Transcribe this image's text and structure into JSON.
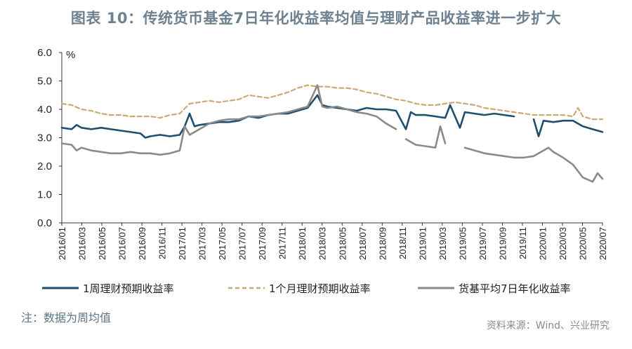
{
  "title": "图表 10：传统货币基金7日年化收益率均值与理财产品收益率进一步扩大",
  "note": "注：数据为周均值",
  "source": "资料来源：Wind、兴业研究",
  "chart_data": {
    "type": "line",
    "ylabel": "%",
    "ylim": [
      0,
      6
    ],
    "yticks": [
      "0.0",
      "1.0",
      "2.0",
      "3.0",
      "4.0",
      "5.0",
      "6.0"
    ],
    "xticks": [
      "2016/01",
      "2016/03",
      "2016/05",
      "2016/07",
      "2016/09",
      "2016/11",
      "2017/01",
      "2017/03",
      "2017/05",
      "2017/07",
      "2017/09",
      "2017/11",
      "2018/01",
      "2018/03",
      "2018/05",
      "2018/07",
      "2018/09",
      "2018/11",
      "2019/01",
      "2019/03",
      "2019/05",
      "2019/07",
      "2019/09",
      "2019/11",
      "2020/01",
      "2020/03",
      "2020/05",
      "2020/07"
    ],
    "xrange": [
      0,
      55
    ],
    "legend_position": "bottom",
    "colors": {
      "week": "#1f4e6e",
      "month": "#c9aa74",
      "mmf": "#8a8a8a"
    },
    "series": [
      {
        "name": "1周理财预期收益率",
        "style": "solid",
        "points": [
          [
            0,
            3.35
          ],
          [
            1,
            3.3
          ],
          [
            1.5,
            3.45
          ],
          [
            2,
            3.35
          ],
          [
            3,
            3.3
          ],
          [
            4,
            3.35
          ],
          [
            5,
            3.3
          ],
          [
            6,
            3.25
          ],
          [
            7,
            3.2
          ],
          [
            8,
            3.15
          ],
          [
            8.5,
            3.0
          ],
          [
            9,
            3.05
          ],
          [
            10,
            3.1
          ],
          [
            11,
            3.05
          ],
          [
            12,
            3.1
          ],
          [
            12.5,
            3.4
          ],
          [
            13,
            3.85
          ],
          [
            13.5,
            3.4
          ],
          [
            14,
            3.45
          ],
          [
            15,
            3.5
          ],
          [
            16,
            3.55
          ],
          [
            17,
            3.55
          ],
          [
            18,
            3.6
          ],
          [
            19,
            3.75
          ],
          [
            20,
            3.7
          ],
          [
            21,
            3.8
          ],
          [
            22,
            3.85
          ],
          [
            23,
            3.85
          ],
          [
            24,
            3.95
          ],
          [
            25,
            4.05
          ],
          [
            26,
            4.5
          ],
          [
            26.5,
            4.15
          ],
          [
            27,
            4.1
          ],
          [
            28,
            4.05
          ],
          [
            29,
            4.0
          ],
          [
            30,
            3.95
          ],
          [
            31,
            4.05
          ],
          [
            32,
            4.0
          ],
          [
            33,
            4.0
          ],
          [
            34,
            3.95
          ],
          [
            35,
            3.3
          ],
          [
            35.5,
            3.9
          ],
          [
            36,
            3.8
          ],
          [
            37,
            3.8
          ],
          [
            38,
            3.75
          ],
          [
            39,
            3.7
          ],
          [
            39.5,
            4.15
          ],
          [
            40,
            3.75
          ],
          [
            40.5,
            3.35
          ],
          [
            41,
            3.9
          ],
          [
            42,
            3.85
          ],
          [
            43,
            3.8
          ],
          [
            44,
            3.85
          ],
          [
            45,
            3.8
          ],
          [
            46,
            3.75
          ],
          [
            47,
            3.75
          ],
          [
            48,
            3.65
          ],
          [
            48.5,
            3.05
          ],
          [
            49,
            3.6
          ],
          [
            50,
            3.55
          ],
          [
            51,
            3.6
          ],
          [
            52,
            3.6
          ],
          [
            53,
            3.4
          ],
          [
            54,
            3.3
          ],
          [
            55,
            3.2
          ]
        ],
        "gaps_after": [
          46.5,
          47.2
        ]
      },
      {
        "name": "1个月理财预期收益率",
        "style": "dashed",
        "points": [
          [
            0,
            4.2
          ],
          [
            1,
            4.15
          ],
          [
            2,
            4.0
          ],
          [
            3,
            3.95
          ],
          [
            4,
            3.85
          ],
          [
            5,
            3.8
          ],
          [
            6,
            3.8
          ],
          [
            7,
            3.75
          ],
          [
            8,
            3.75
          ],
          [
            9,
            3.75
          ],
          [
            10,
            3.7
          ],
          [
            11,
            3.8
          ],
          [
            12,
            3.85
          ],
          [
            13,
            4.2
          ],
          [
            14,
            4.25
          ],
          [
            15,
            4.3
          ],
          [
            16,
            4.25
          ],
          [
            17,
            4.3
          ],
          [
            18,
            4.35
          ],
          [
            19,
            4.5
          ],
          [
            20,
            4.45
          ],
          [
            21,
            4.4
          ],
          [
            22,
            4.5
          ],
          [
            23,
            4.6
          ],
          [
            24,
            4.75
          ],
          [
            25,
            4.85
          ],
          [
            26,
            4.8
          ],
          [
            27,
            4.8
          ],
          [
            28,
            4.75
          ],
          [
            29,
            4.75
          ],
          [
            30,
            4.7
          ],
          [
            31,
            4.6
          ],
          [
            32,
            4.55
          ],
          [
            33,
            4.45
          ],
          [
            34,
            4.35
          ],
          [
            35,
            4.3
          ],
          [
            36,
            4.2
          ],
          [
            37,
            4.15
          ],
          [
            38,
            4.15
          ],
          [
            39,
            4.2
          ],
          [
            40,
            4.25
          ],
          [
            41,
            4.2
          ],
          [
            42,
            4.15
          ],
          [
            43,
            4.05
          ],
          [
            44,
            4.0
          ],
          [
            45,
            3.95
          ],
          [
            46,
            3.9
          ],
          [
            47,
            3.85
          ],
          [
            48,
            3.8
          ],
          [
            49,
            3.8
          ],
          [
            50,
            3.8
          ],
          [
            51,
            3.8
          ],
          [
            52,
            3.75
          ],
          [
            52.5,
            4.05
          ],
          [
            53,
            3.75
          ],
          [
            54,
            3.65
          ],
          [
            55,
            3.65
          ]
        ]
      },
      {
        "name": "货基平均7日年化收益率",
        "style": "solid",
        "points": [
          [
            0,
            2.8
          ],
          [
            1,
            2.75
          ],
          [
            1.5,
            2.55
          ],
          [
            2,
            2.65
          ],
          [
            3,
            2.55
          ],
          [
            4,
            2.5
          ],
          [
            5,
            2.45
          ],
          [
            6,
            2.45
          ],
          [
            7,
            2.5
          ],
          [
            8,
            2.45
          ],
          [
            9,
            2.45
          ],
          [
            10,
            2.4
          ],
          [
            11,
            2.45
          ],
          [
            12,
            2.55
          ],
          [
            12.5,
            3.4
          ],
          [
            13,
            3.1
          ],
          [
            14,
            3.3
          ],
          [
            15,
            3.5
          ],
          [
            16,
            3.6
          ],
          [
            17,
            3.65
          ],
          [
            18,
            3.65
          ],
          [
            19,
            3.75
          ],
          [
            20,
            3.75
          ],
          [
            21,
            3.8
          ],
          [
            22,
            3.85
          ],
          [
            23,
            3.9
          ],
          [
            24,
            4.0
          ],
          [
            25,
            4.1
          ],
          [
            26,
            4.85
          ],
          [
            26.5,
            4.1
          ],
          [
            27,
            4.05
          ],
          [
            28,
            4.1
          ],
          [
            29,
            4.0
          ],
          [
            30,
            3.9
          ],
          [
            31,
            3.85
          ],
          [
            32,
            3.75
          ],
          [
            33,
            3.5
          ],
          [
            34,
            3.3
          ],
          [
            35,
            2.95
          ],
          [
            36,
            2.75
          ],
          [
            37,
            2.7
          ],
          [
            38,
            2.65
          ],
          [
            38.5,
            3.4
          ],
          [
            39,
            2.8
          ],
          [
            40,
            2.75
          ],
          [
            41,
            2.65
          ],
          [
            42,
            2.55
          ],
          [
            43,
            2.45
          ],
          [
            44,
            2.4
          ],
          [
            45,
            2.35
          ],
          [
            46,
            2.3
          ],
          [
            47,
            2.3
          ],
          [
            48,
            2.35
          ],
          [
            49,
            2.55
          ],
          [
            49.5,
            2.65
          ],
          [
            50,
            2.5
          ],
          [
            51,
            2.3
          ],
          [
            52,
            2.05
          ],
          [
            53,
            1.6
          ],
          [
            54,
            1.45
          ],
          [
            54.5,
            1.75
          ],
          [
            55,
            1.55
          ]
        ],
        "gaps_after": [
          34.5,
          36.0,
          39.5,
          40.2
        ]
      }
    ]
  }
}
